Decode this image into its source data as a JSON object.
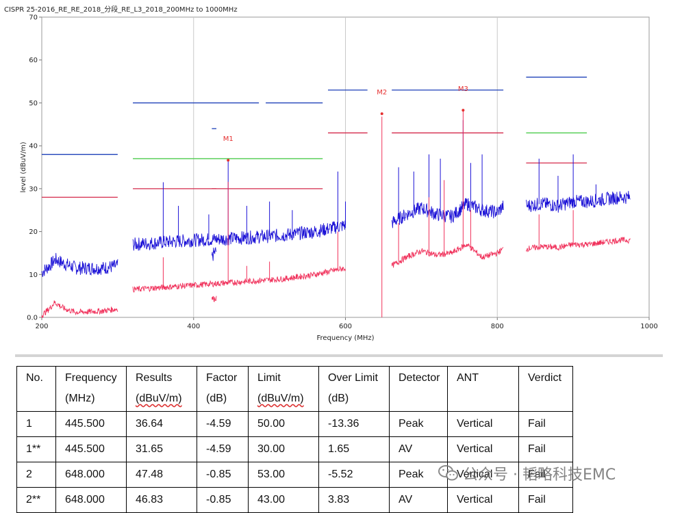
{
  "chart_data": {
    "type": "line",
    "title": "CISPR 25-2016_RE_RE_2018_分段_RE_L3_2018_200MHz to 1000MHz",
    "xlabel": "Frequency (MHz)",
    "ylabel": "level (dBuV/m)",
    "xlim": [
      200,
      1000
    ],
    "ylim": [
      0,
      70
    ],
    "x_ticks": [
      "200",
      "400",
      "600",
      "800",
      "1000"
    ],
    "y_ticks": [
      "0.0",
      "10",
      "20",
      "30",
      "40",
      "50",
      "60",
      "70"
    ],
    "grid": "vertical",
    "colors": {
      "peak": "#1a10d6",
      "average": "#f0305a",
      "limit_peak": "#1c3fb8",
      "limit_avg": "#d4284a",
      "limit_green": "#4ccc4c",
      "marker": "#e53030"
    },
    "limit_lines": {
      "peak": [
        {
          "x": [
            200,
            300
          ],
          "y": 38
        },
        {
          "x": [
            424,
            430
          ],
          "y": 44
        },
        {
          "x": [
            320,
            486
          ],
          "y": 50
        },
        {
          "x": [
            495,
            570
          ],
          "y": 50
        },
        {
          "x": [
            577,
            629
          ],
          "y": 53
        },
        {
          "x": [
            661,
            808
          ],
          "y": 53
        },
        {
          "x": [
            838,
            918
          ],
          "y": 56
        }
      ],
      "average": [
        {
          "x": [
            200,
            300
          ],
          "y": 28
        },
        {
          "x": [
            424,
            430
          ],
          "y": 30
        },
        {
          "x": [
            320,
            570
          ],
          "y": 30
        },
        {
          "x": [
            577,
            629
          ],
          "y": 43
        },
        {
          "x": [
            661,
            808
          ],
          "y": 43
        },
        {
          "x": [
            838,
            918
          ],
          "y": 36
        }
      ],
      "green": [
        {
          "x": [
            320,
            570
          ],
          "y": 37
        },
        {
          "x": [
            838,
            918
          ],
          "y": 43
        }
      ]
    },
    "series": [
      {
        "segments": [
          {
            "x": [
              200,
              210,
              218,
              230,
              245,
              260,
              280,
              300
            ],
            "y": [
              10.5,
              12,
              13.5,
              12.5,
              11.5,
              11.5,
              11.5,
              12
            ]
          },
          {
            "x": [
              424,
              427,
              430
            ],
            "y": [
              14,
              15,
              15.5
            ]
          },
          {
            "x": [
              320,
              360,
              400,
              440,
              480,
              520,
              560,
              600
            ],
            "y": [
              17,
              17.5,
              18,
              18.3,
              18.7,
              19.2,
              20,
              21.5
            ]
          },
          {
            "x": [
              661,
              680,
              700,
              720,
              740,
              760,
              780,
              800,
              808
            ],
            "y": [
              22,
              24,
              25.5,
              24,
              23.5,
              26.5,
              25,
              24.5,
              26
            ]
          },
          {
            "x": [
              838,
              860,
              880,
              900,
              920,
              940,
              960,
              975
            ],
            "y": [
              26,
              26.5,
              26,
              27,
              27,
              27.5,
              28,
              28
            ]
          }
        ],
        "spikes": [
          {
            "x": 360,
            "y": 31.5
          },
          {
            "x": 380,
            "y": 26
          },
          {
            "x": 420,
            "y": 24
          },
          {
            "x": 445.5,
            "y": 36.6
          },
          {
            "x": 470,
            "y": 26
          },
          {
            "x": 500,
            "y": 27
          },
          {
            "x": 530,
            "y": 25
          },
          {
            "x": 590,
            "y": 34
          },
          {
            "x": 600,
            "y": 27
          },
          {
            "x": 670,
            "y": 35
          },
          {
            "x": 690,
            "y": 34
          },
          {
            "x": 710,
            "y": 38
          },
          {
            "x": 725,
            "y": 37
          },
          {
            "x": 755,
            "y": 46
          },
          {
            "x": 765,
            "y": 36
          },
          {
            "x": 780,
            "y": 38
          },
          {
            "x": 855,
            "y": 37
          },
          {
            "x": 880,
            "y": 33
          },
          {
            "x": 900,
            "y": 38
          },
          {
            "x": 930,
            "y": 31
          }
        ]
      },
      {
        "segments": [
          {
            "x": [
              200,
              210,
              217,
              230,
              245,
              260,
              280,
              300
            ],
            "y": [
              0.5,
              2,
              3.5,
              2,
              1.2,
              1.3,
              1.5,
              2
            ]
          },
          {
            "x": [
              424,
              427,
              430
            ],
            "y": [
              4.5,
              4.3,
              4.6
            ]
          },
          {
            "x": [
              320,
              360,
              400,
              440,
              480,
              520,
              560,
              600
            ],
            "y": [
              6.5,
              7,
              7.5,
              8,
              8.5,
              9,
              10,
              11.5
            ]
          },
          {
            "x": [
              661,
              680,
              700,
              720,
              740,
              760,
              780,
              800,
              808
            ],
            "y": [
              12,
              14,
              15.5,
              14.5,
              15,
              17,
              14,
              15,
              16
            ]
          },
          {
            "x": [
              838,
              860,
              880,
              900,
              920,
              940,
              960,
              975
            ],
            "y": [
              16,
              16.5,
              16.3,
              17,
              17,
              17.5,
              18,
              18
            ]
          }
        ],
        "spikes": [
          {
            "x": 445.5,
            "y": 31.6
          },
          {
            "x": 360,
            "y": 14
          },
          {
            "x": 470,
            "y": 12
          },
          {
            "x": 500,
            "y": 13
          },
          {
            "x": 590,
            "y": 20
          },
          {
            "x": 648,
            "y": 46.8
          },
          {
            "x": 670,
            "y": 22
          },
          {
            "x": 710,
            "y": 28
          },
          {
            "x": 730,
            "y": 32
          },
          {
            "x": 755,
            "y": 48
          },
          {
            "x": 765,
            "y": 25
          },
          {
            "x": 855,
            "y": 24
          },
          {
            "x": 900,
            "y": 25
          }
        ]
      }
    ],
    "markers": [
      {
        "label": "M1",
        "x": 445.5,
        "y": 36.64
      },
      {
        "label": "M2",
        "x": 648,
        "y": 47.48
      },
      {
        "label": "M3",
        "x": 755,
        "y": 48.3
      }
    ]
  },
  "table": {
    "headers": [
      {
        "line1": "No.",
        "line2": ""
      },
      {
        "line1": "Frequency",
        "line2": "(MHz)"
      },
      {
        "line1": "Results",
        "line2": "(dBuV/m)"
      },
      {
        "line1": "Factor",
        "line2": "(dB)"
      },
      {
        "line1": "Limit",
        "line2": "(dBuV/m)"
      },
      {
        "line1": "Over Limit",
        "line2": "(dB)"
      },
      {
        "line1": "Detector",
        "line2": ""
      },
      {
        "line1": "ANT",
        "line2": ""
      },
      {
        "line1": "Verdict",
        "line2": ""
      }
    ],
    "rows": [
      [
        "1",
        "445.500",
        "36.64",
        "-4.59",
        "50.00",
        "-13.36",
        "Peak",
        "Vertical",
        "Fail"
      ],
      [
        "1**",
        "445.500",
        "31.65",
        "-4.59",
        "30.00",
        "1.65",
        "AV",
        "Vertical",
        "Fail"
      ],
      [
        "2",
        "648.000",
        "47.48",
        "-0.85",
        "53.00",
        "-5.52",
        "Peak",
        "Vertical",
        "Fail"
      ],
      [
        "2**",
        "648.000",
        "46.83",
        "-0.85",
        "43.00",
        "3.83",
        "AV",
        "Vertical",
        "Fail"
      ]
    ]
  },
  "watermark": {
    "text": "公众号 · 韬略科技EMC",
    "icon": "wechat-icon"
  }
}
